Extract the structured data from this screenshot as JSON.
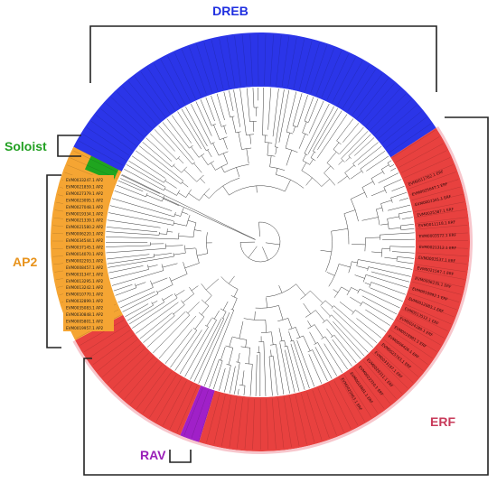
{
  "groups": [
    {
      "id": "dreb",
      "label": "DREB",
      "color": "#2b35e8",
      "text_color": "#1f2fe0"
    },
    {
      "id": "soloist",
      "label": "Soloist",
      "color": "#1fa51f",
      "text_color": "#22a022"
    },
    {
      "id": "ap2",
      "label": "AP2",
      "color": "#f5a533",
      "text_color": "#e8931c"
    },
    {
      "id": "rav",
      "label": "RAV",
      "color": "#a020c8",
      "text_color": "#9a1fb8"
    },
    {
      "id": "erf",
      "label": "ERF",
      "color": "#e8413f",
      "text_color": "#c83a5a"
    }
  ],
  "ap2_leaves": [
    "EVM0033247.1 AP2",
    "EVM0021859.1 AP2",
    "EVM0027379.1 AP2",
    "EVM0023095.1 AP2",
    "EVM0027048.1 AP2",
    "EVM0019334.1 AP2",
    "EVM0021339.1 AP2",
    "EVM0021580.2 AP2",
    "EVM0006220.1 AP2",
    "EVM0034544.1 AP2",
    "EVM0037145.1 AP2",
    "EVM0014070.1 AP2",
    "EVM0002293.1 AP2",
    "EVM0008457.1 AP2",
    "EVM0031347.1 AP2",
    "EVM0013295.1 AP2",
    "EVM0013242.1 AP2",
    "EVM0010770.1 AP2",
    "EVM0032899.1 AP2",
    "EVM0035083.1 AP2",
    "EVM0030848.1 AP2",
    "EVM0005801.1 AP2",
    "EVM0019957.1 AP2"
  ],
  "erf_leaves": [
    "EVM0011762.1 ERF",
    "EVM0025047.1 ERF",
    "EVM0007341.1 ERF",
    "EVM0025387.1 ERF",
    "EVM0011118.1 ERF",
    "EVM0003572.1 ERF",
    "EVM0021312.1 ERF",
    "EVM0003537.1 ERF",
    "EVM0021567.1 ERF",
    "EVM0006235.1 ERF",
    "EVM0010992.1 ERF",
    "EVM0012983.1 ERF",
    "EVM0013512.1 ERF",
    "EVM0024285.1 ERF",
    "EVM0018981.1 ERF",
    "EVM0006426.1 ERF",
    "EVM0025743.1 ERF",
    "EVM0033187.1 ERF",
    "EVM0029311.1 ERF",
    "EVM0022310.1 ERF",
    "EVM0016881.1 ERF",
    "EVM0020063.1 ERF"
  ]
}
